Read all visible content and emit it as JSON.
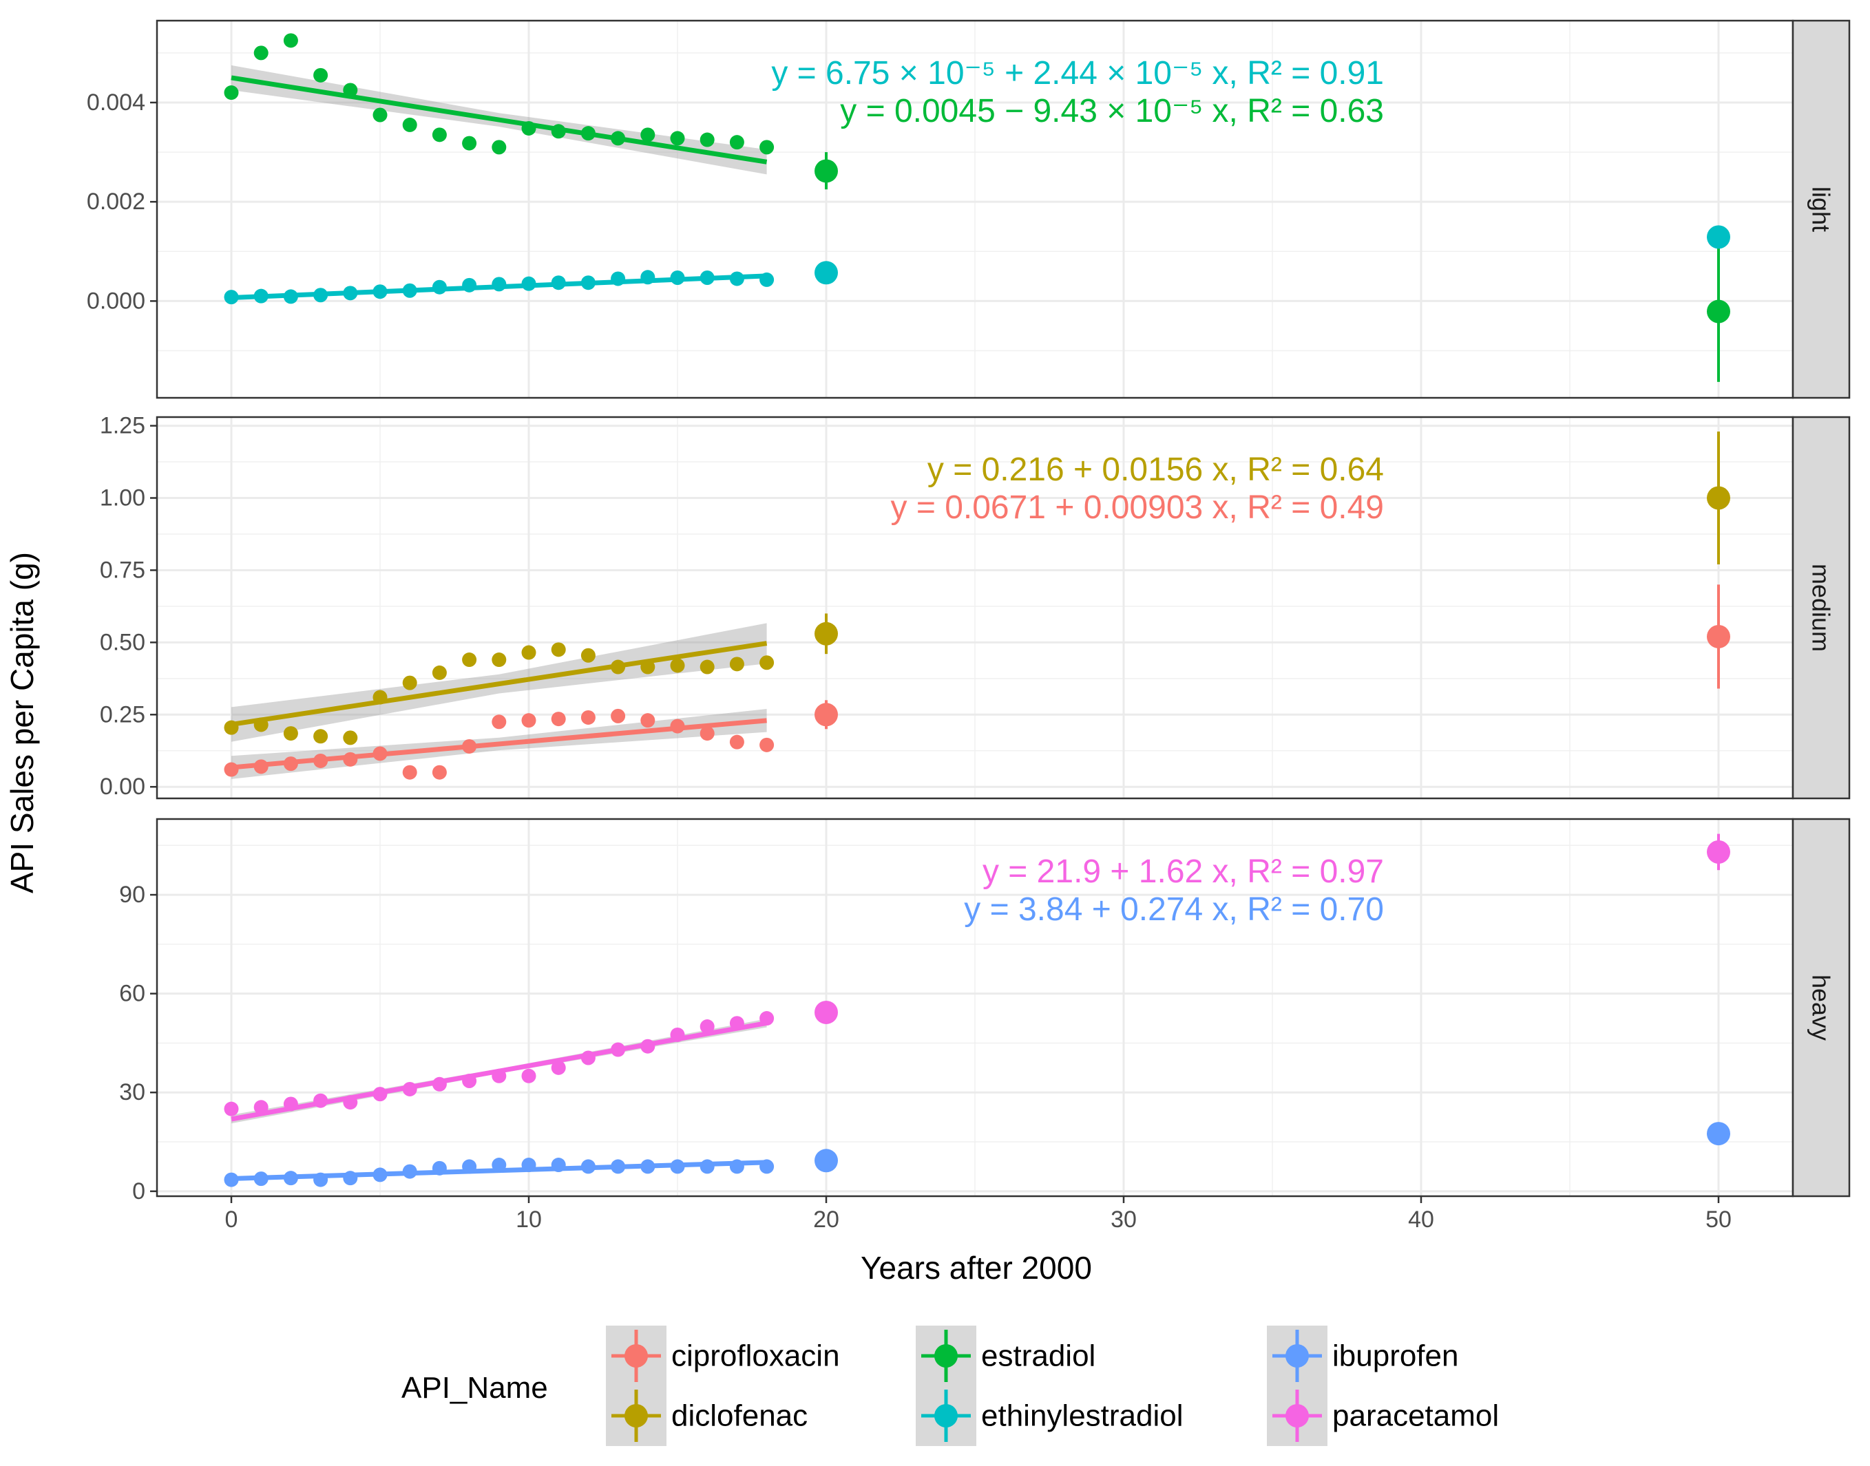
{
  "chart_data": {
    "type": "scatter",
    "xlabel": "Years after 2000",
    "ylabel": "API Sales per Capita (g)",
    "x_ticks": [
      0,
      10,
      20,
      30,
      40,
      50
    ],
    "xlim": [
      -2.5,
      52.5
    ],
    "grid": true,
    "legend_position": "bottom",
    "legend_title": "API_Name",
    "legend_order": [
      "ciprofloxacin",
      "diclofenac",
      "estradiol",
      "ethinylestradiol",
      "ibuprofen",
      "paracetamol"
    ],
    "colors": {
      "ciprofloxacin": "#F8766D",
      "diclofenac": "#B79F00",
      "estradiol": "#00BA38",
      "ethinylestradiol": "#00BFC4",
      "ibuprofen": "#619CFF",
      "paracetamol": "#F564E3"
    },
    "panels": [
      {
        "strip": "light",
        "ylim": [
          -0.00195,
          0.00565
        ],
        "y_ticks": [
          0,
          0.002,
          0.004
        ],
        "y_tick_labels": [
          "0.000",
          "0.002",
          "0.004"
        ],
        "series": [
          {
            "name": "estradiol",
            "x": [
              0,
              1,
              2,
              3,
              4,
              5,
              6,
              7,
              8,
              9,
              10,
              11,
              12,
              13,
              14,
              15,
              16,
              17,
              18
            ],
            "y": [
              0.0042,
              0.005,
              0.00525,
              0.00455,
              0.00425,
              0.00375,
              0.00355,
              0.00335,
              0.00318,
              0.0031,
              0.00348,
              0.00342,
              0.00338,
              0.00328,
              0.00335,
              0.00328,
              0.00325,
              0.0032,
              0.0031
            ],
            "fit": {
              "intercept": 0.0045,
              "slope": -9.43e-05,
              "x_range": [
                0,
                18
              ],
              "ci_start": 0.00025,
              "ci_end": 0.00025
            },
            "predictions": [
              {
                "x": 20,
                "y": 0.00262,
                "lower": 0.00225,
                "upper": 0.003
              },
              {
                "x": 50,
                "y": -0.00021,
                "lower": -0.00163,
                "upper": 0.0012
              }
            ]
          },
          {
            "name": "ethinylestradiol",
            "x": [
              0,
              1,
              2,
              3,
              4,
              5,
              6,
              7,
              8,
              9,
              10,
              11,
              12,
              13,
              14,
              15,
              16,
              17,
              18
            ],
            "y": [
              8e-05,
              0.0001,
              9e-05,
              0.00012,
              0.00016,
              0.00019,
              0.00021,
              0.00028,
              0.00032,
              0.00034,
              0.00035,
              0.00037,
              0.00037,
              0.00045,
              0.00048,
              0.00047,
              0.00047,
              0.00045,
              0.00043
            ],
            "fit": {
              "intercept": 6.75e-05,
              "slope": 2.44e-05,
              "x_range": [
                0,
                18
              ],
              "ci_start": 3e-05,
              "ci_end": 3e-05
            },
            "predictions": [
              {
                "x": 20,
                "y": 0.00057,
                "lower": 0.00053,
                "upper": 0.00061
              },
              {
                "x": 50,
                "y": 0.00129,
                "lower": 0.00124,
                "upper": 0.00134
              }
            ]
          }
        ],
        "equations": [
          {
            "series": "ethinylestradiol",
            "text": "y = 6.75 × 10⁻⁵ + 2.44 × 10⁻⁵ x, R² = 0.91"
          },
          {
            "series": "estradiol",
            "text": "y = 0.0045 − 9.43 × 10⁻⁵ x, R² = 0.63"
          }
        ]
      },
      {
        "strip": "medium",
        "ylim": [
          -0.04,
          1.28
        ],
        "y_ticks": [
          0,
          0.25,
          0.5,
          0.75,
          1.0,
          1.25
        ],
        "y_tick_labels": [
          "0.00",
          "0.25",
          "0.50",
          "0.75",
          "1.00",
          "1.25"
        ],
        "series": [
          {
            "name": "diclofenac",
            "x": [
              0,
              1,
              2,
              3,
              4,
              5,
              6,
              7,
              8,
              9,
              10,
              11,
              12,
              13,
              14,
              15,
              16,
              17,
              18
            ],
            "y": [
              0.205,
              0.215,
              0.185,
              0.175,
              0.17,
              0.31,
              0.36,
              0.395,
              0.44,
              0.44,
              0.465,
              0.475,
              0.455,
              0.415,
              0.415,
              0.42,
              0.415,
              0.425,
              0.43
            ],
            "fit": {
              "intercept": 0.216,
              "slope": 0.0156,
              "x_range": [
                0,
                18
              ],
              "ci_start": 0.06,
              "ci_end": 0.07
            },
            "predictions": [
              {
                "x": 20,
                "y": 0.53,
                "lower": 0.46,
                "upper": 0.6
              },
              {
                "x": 50,
                "y": 1.0,
                "lower": 0.77,
                "upper": 1.23
              }
            ]
          },
          {
            "name": "ciprofloxacin",
            "x": [
              0,
              1,
              2,
              3,
              4,
              5,
              6,
              7,
              8,
              9,
              10,
              11,
              12,
              13,
              14,
              15,
              16,
              17,
              18
            ],
            "y": [
              0.06,
              0.07,
              0.08,
              0.09,
              0.095,
              0.115,
              0.05,
              0.05,
              0.14,
              0.225,
              0.23,
              0.235,
              0.24,
              0.245,
              0.23,
              0.21,
              0.185,
              0.155,
              0.145
            ],
            "fit": {
              "intercept": 0.0671,
              "slope": 0.00903,
              "x_range": [
                0,
                18
              ],
              "ci_start": 0.04,
              "ci_end": 0.04
            },
            "predictions": [
              {
                "x": 20,
                "y": 0.25,
                "lower": 0.2,
                "upper": 0.3
              },
              {
                "x": 50,
                "y": 0.52,
                "lower": 0.34,
                "upper": 0.7
              }
            ]
          }
        ],
        "equations": [
          {
            "series": "diclofenac",
            "text": "y = 0.216 + 0.0156 x, R² = 0.64"
          },
          {
            "series": "ciprofloxacin",
            "text": "y = 0.0671 + 0.00903 x, R² = 0.49"
          }
        ]
      },
      {
        "strip": "heavy",
        "ylim": [
          -1.5,
          113
        ],
        "y_ticks": [
          0,
          30,
          60,
          90
        ],
        "y_tick_labels": [
          "0",
          "30",
          "60",
          "90"
        ],
        "series": [
          {
            "name": "paracetamol",
            "x": [
              0,
              1,
              2,
              3,
              4,
              5,
              6,
              7,
              8,
              9,
              10,
              11,
              12,
              13,
              14,
              15,
              16,
              17,
              18
            ],
            "y": [
              25,
              25.5,
              26.5,
              27.5,
              27,
              29.5,
              31,
              32.5,
              33.5,
              35,
              35,
              37.5,
              40.5,
              43,
              44,
              47.5,
              50,
              51,
              52.5
            ],
            "fit": {
              "intercept": 21.9,
              "slope": 1.62,
              "x_range": [
                0,
                18
              ],
              "ci_start": 1.3,
              "ci_end": 1.3
            },
            "predictions": [
              {
                "x": 20,
                "y": 54.3,
                "lower": 53.2,
                "upper": 55.4
              },
              {
                "x": 50,
                "y": 103,
                "lower": 97.5,
                "upper": 108.5
              }
            ]
          },
          {
            "name": "ibuprofen",
            "x": [
              0,
              1,
              2,
              3,
              4,
              5,
              6,
              7,
              8,
              9,
              10,
              11,
              12,
              13,
              14,
              15,
              16,
              17,
              18
            ],
            "y": [
              3.5,
              3.8,
              4,
              3.5,
              4,
              5,
              6,
              7,
              7.5,
              8,
              8,
              8,
              7.5,
              7.5,
              7.5,
              7.5,
              7.5,
              7.5,
              7.5
            ],
            "fit": {
              "intercept": 3.84,
              "slope": 0.274,
              "x_range": [
                0,
                18
              ],
              "ci_start": 0.6,
              "ci_end": 0.6
            },
            "predictions": [
              {
                "x": 20,
                "y": 9.3,
                "lower": 8.8,
                "upper": 9.8
              },
              {
                "x": 50,
                "y": 17.5,
                "lower": 16.5,
                "upper": 18.5
              }
            ]
          }
        ],
        "equations": [
          {
            "series": "paracetamol",
            "text": "y = 21.9 + 1.62 x, R² = 0.97"
          },
          {
            "series": "ibuprofen",
            "text": "y = 3.84 + 0.274 x, R² = 0.70"
          }
        ]
      }
    ]
  }
}
